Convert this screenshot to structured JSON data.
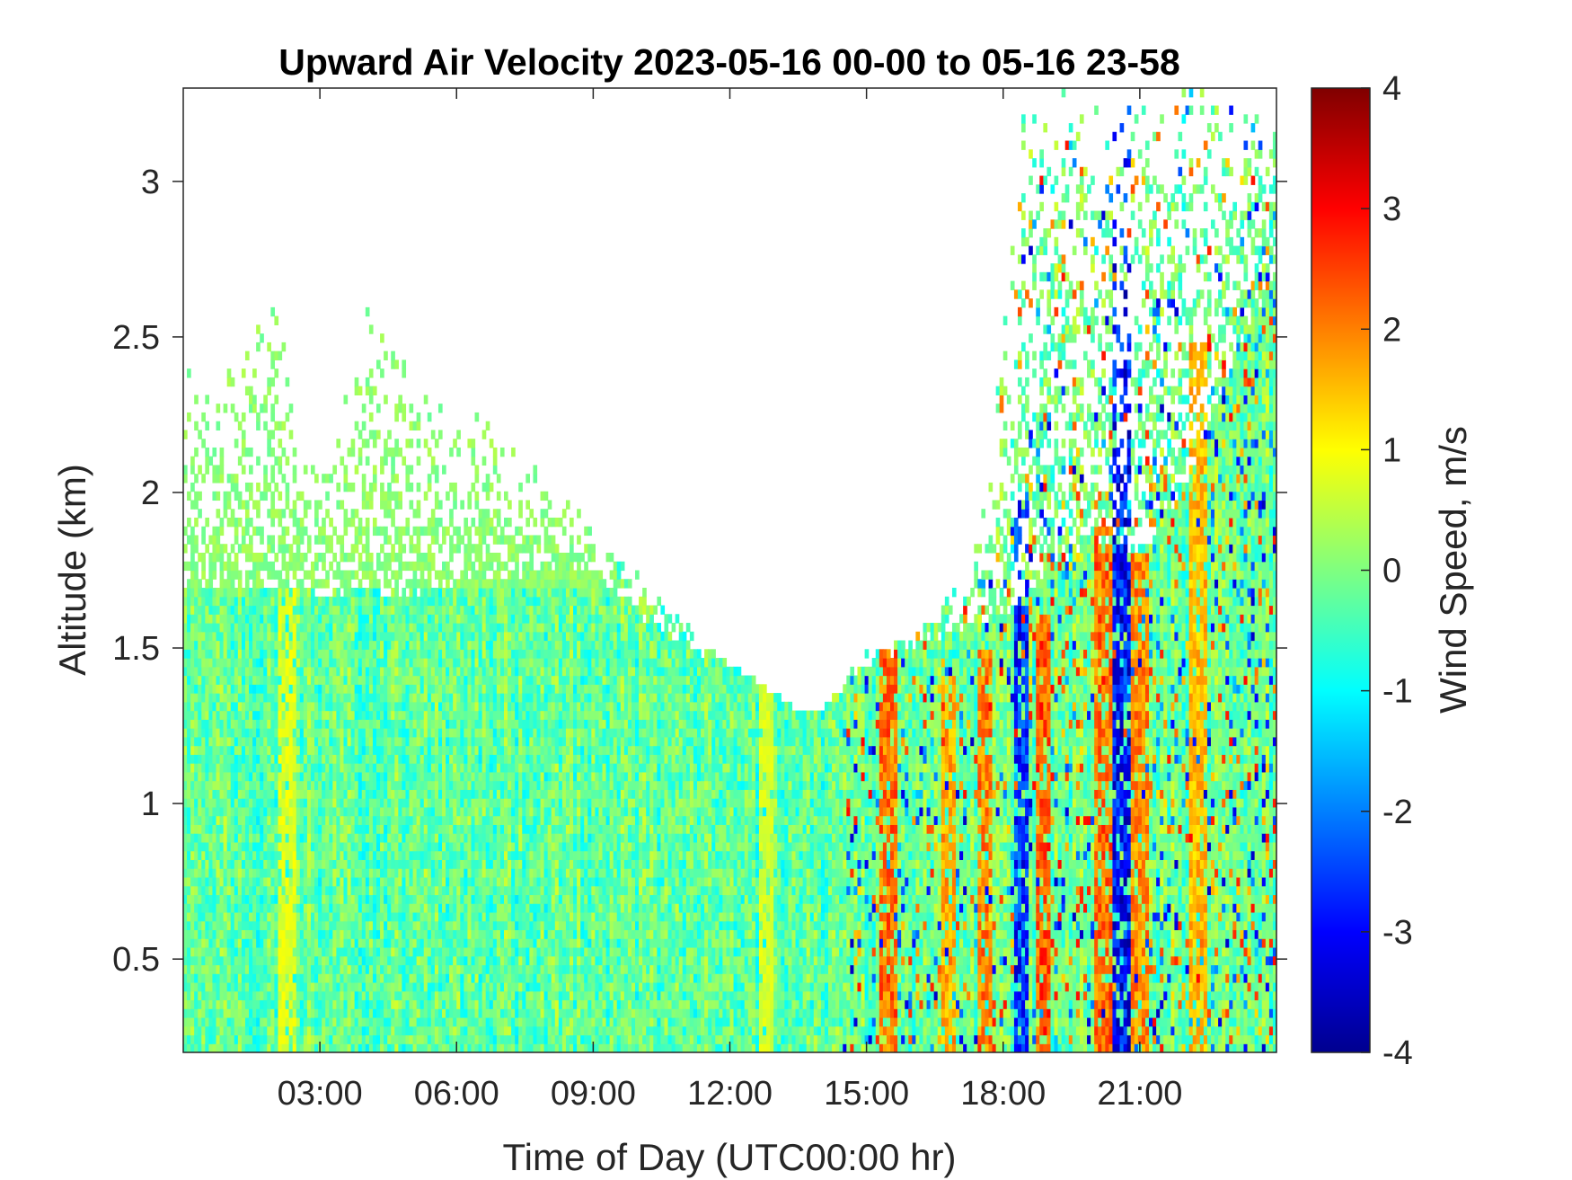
{
  "chart_data": {
    "type": "heatmap",
    "title": "Upward Air Velocity 2023-05-16 00-00 to 05-16 23-58",
    "xlabel": "Time of Day (UTC00:00 hr)",
    "ylabel": "Altitude (km)",
    "x_unit": "hour of day (UTC)",
    "xlim": [
      0,
      24
    ],
    "ylim": [
      0.2,
      3.3
    ],
    "x_ticks": [
      {
        "value": 3,
        "label": "03:00"
      },
      {
        "value": 6,
        "label": "06:00"
      },
      {
        "value": 9,
        "label": "09:00"
      },
      {
        "value": 12,
        "label": "12:00"
      },
      {
        "value": 15,
        "label": "15:00"
      },
      {
        "value": 18,
        "label": "18:00"
      },
      {
        "value": 21,
        "label": "21:00"
      }
    ],
    "y_ticks": [
      {
        "value": 0.5,
        "label": "0.5"
      },
      {
        "value": 1,
        "label": "1"
      },
      {
        "value": 1.5,
        "label": "1.5"
      },
      {
        "value": 2,
        "label": "2"
      },
      {
        "value": 2.5,
        "label": "2.5"
      },
      {
        "value": 3,
        "label": "3"
      }
    ],
    "colorbar": {
      "label": "Wind Speed, m/s",
      "colormap": "jet",
      "clim": [
        -4,
        4
      ],
      "ticks": [
        {
          "value": 4,
          "label": "4"
        },
        {
          "value": 3,
          "label": "3"
        },
        {
          "value": 2,
          "label": "2"
        },
        {
          "value": 1,
          "label": "1"
        },
        {
          "value": 0,
          "label": "0"
        },
        {
          "value": -1,
          "label": "-1"
        },
        {
          "value": -2,
          "label": "-2"
        },
        {
          "value": -3,
          "label": "-3"
        },
        {
          "value": -4,
          "label": "-4"
        }
      ]
    },
    "data_ceiling_km": {
      "hours": [
        0,
        0.5,
        1,
        1.5,
        2,
        2.5,
        3,
        3.5,
        4,
        4.5,
        5,
        5.5,
        6,
        6.5,
        7,
        7.5,
        8,
        8.5,
        9,
        9.5,
        10,
        10.5,
        11,
        11.5,
        12,
        12.5,
        13,
        13.5,
        14,
        14.5,
        15,
        15.5,
        16,
        16.5,
        17,
        17.5,
        18,
        18.5,
        19,
        19.5,
        20,
        20.5,
        21,
        21.5,
        22,
        22.5,
        23,
        23.5,
        24
      ],
      "altitude_km": [
        2.6,
        2.3,
        2.4,
        2.5,
        2.7,
        2.2,
        2.1,
        2.3,
        2.6,
        2.5,
        2.4,
        2.3,
        2.2,
        2.3,
        2.2,
        2.1,
        2.1,
        2.0,
        1.9,
        1.8,
        1.75,
        1.7,
        1.6,
        1.5,
        1.45,
        1.4,
        1.35,
        1.3,
        1.3,
        1.4,
        1.5,
        1.5,
        1.55,
        1.6,
        1.7,
        1.9,
        2.5,
        3.3,
        3.3,
        3.3,
        3.3,
        3.3,
        3.3,
        3.3,
        3.3,
        3.3,
        3.3,
        3.3,
        3.3
      ]
    },
    "solid_layer_top_km": {
      "hours": [
        0,
        2,
        4,
        6,
        8,
        9,
        10,
        11,
        12,
        13,
        14,
        15,
        16,
        17,
        18,
        19,
        20,
        21,
        22,
        23,
        24
      ],
      "altitude_km": [
        1.7,
        1.7,
        1.65,
        1.7,
        1.75,
        1.75,
        1.6,
        1.5,
        1.45,
        1.35,
        1.3,
        1.45,
        1.5,
        1.55,
        1.6,
        1.75,
        1.85,
        1.8,
        2.0,
        2.4,
        2.7
      ]
    },
    "velocity_regimes": [
      {
        "hours": [
          0,
          14.5
        ],
        "typical_m_s": [
          -1.0,
          0.6
        ],
        "description": "mostly cyan to light green"
      },
      {
        "hours": [
          14.5,
          24
        ],
        "typical_m_s": [
          -3.5,
          3.0
        ],
        "description": "strong alternating updrafts and downdrafts"
      }
    ],
    "convective_columns": [
      {
        "hour": 2.3,
        "peak_m_s": 1.0,
        "top_km": 1.7
      },
      {
        "hour": 12.8,
        "peak_m_s": 0.9,
        "top_km": 1.4
      },
      {
        "hour": 15.5,
        "peak_m_s": 2.8,
        "top_km": 1.5
      },
      {
        "hour": 16.8,
        "peak_m_s": 2.2,
        "top_km": 1.4
      },
      {
        "hour": 17.6,
        "peak_m_s": 2.6,
        "top_km": 1.5
      },
      {
        "hour": 18.4,
        "peak_m_s": -3.5,
        "top_km": 2.0
      },
      {
        "hour": 18.9,
        "peak_m_s": 3.0,
        "top_km": 1.6
      },
      {
        "hour": 20.2,
        "peak_m_s": 2.8,
        "top_km": 1.9
      },
      {
        "hour": 20.6,
        "peak_m_s": -3.8,
        "top_km": 3.3
      },
      {
        "hour": 21.0,
        "peak_m_s": 2.5,
        "top_km": 1.8
      },
      {
        "hour": 22.3,
        "peak_m_s": 2.0,
        "top_km": 2.5
      }
    ]
  }
}
